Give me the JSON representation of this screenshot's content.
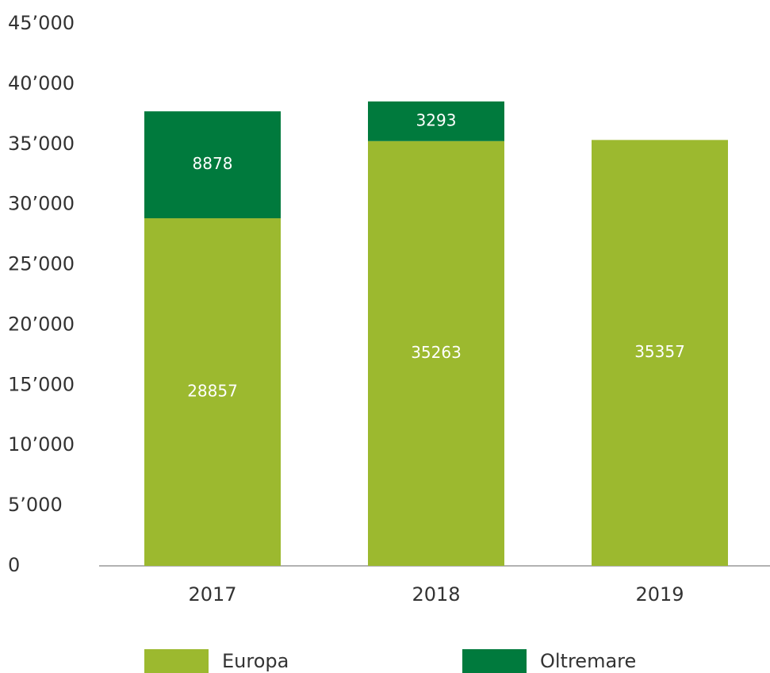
{
  "chart_data": {
    "type": "bar",
    "stacked": true,
    "categories": [
      "2017",
      "2018",
      "2019"
    ],
    "series": [
      {
        "name": "Europa",
        "color": "#9cb92f",
        "values": [
          28857,
          35263,
          35357
        ]
      },
      {
        "name": "Oltremare",
        "color": "#007a3d",
        "values": [
          8878,
          3293,
          null
        ]
      }
    ],
    "ylim": [
      0,
      45000
    ],
    "yticks": [
      0,
      {
        "value": 5000,
        "label": "5’000"
      },
      {
        "value": 10000,
        "label": "10’000"
      },
      {
        "value": 15000,
        "label": "15’000"
      },
      {
        "value": 20000,
        "label": "20’000"
      },
      {
        "value": 25000,
        "label": "25’000"
      },
      {
        "value": 30000,
        "label": "30’000"
      },
      {
        "value": 35000,
        "label": "35’000"
      },
      {
        "value": 40000,
        "label": "40’000"
      },
      {
        "value": 45000,
        "label": "45’000"
      }
    ],
    "legend": "bottom"
  }
}
